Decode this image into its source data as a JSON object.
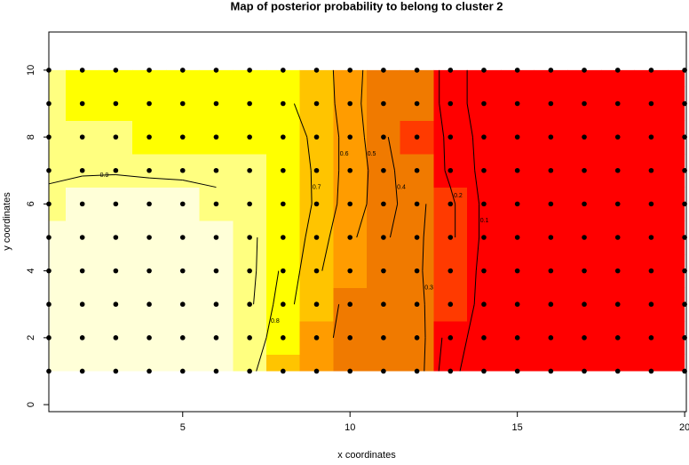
{
  "chart_data": {
    "type": "contour",
    "title": "Map of posterior probability to belong to cluster  2",
    "x_label": "x coordinates",
    "y_label": "y coordinates",
    "xlim": [
      1,
      20.05
    ],
    "ylim": [
      -0.21,
      11.14
    ],
    "xticks": [
      5,
      10,
      15,
      20
    ],
    "yticks": [
      0,
      2,
      4,
      6,
      8,
      10
    ],
    "grid_x": [
      1,
      2,
      3,
      4,
      5,
      6,
      7,
      8,
      9,
      10,
      11,
      12,
      13,
      14,
      15,
      16,
      17,
      18,
      19,
      20
    ],
    "grid_y": [
      1,
      2,
      3,
      4,
      5,
      6,
      7,
      8,
      9,
      10
    ],
    "z": [
      [
        1.0,
        1.0,
        1.0,
        1.0,
        0.98,
        0.95,
        0.85,
        0.6,
        0.5,
        0.45,
        0.4,
        0.35,
        0.12,
        0.05,
        0.03,
        0.03,
        0.02,
        0.02,
        0.02,
        0.02
      ],
      [
        1.0,
        1.0,
        1.0,
        1.0,
        0.98,
        0.95,
        0.9,
        0.7,
        0.55,
        0.45,
        0.4,
        0.35,
        0.15,
        0.05,
        0.03,
        0.03,
        0.02,
        0.02,
        0.02,
        0.02
      ],
      [
        0.98,
        1.0,
        1.0,
        1.0,
        0.97,
        0.95,
        0.92,
        0.75,
        0.6,
        0.45,
        0.4,
        0.33,
        0.2,
        0.06,
        0.03,
        0.03,
        0.02,
        0.02,
        0.02,
        0.02
      ],
      [
        0.97,
        0.99,
        1.0,
        1.0,
        0.97,
        0.95,
        0.93,
        0.78,
        0.62,
        0.5,
        0.4,
        0.32,
        0.2,
        0.07,
        0.03,
        0.03,
        0.02,
        0.02,
        0.02,
        0.02
      ],
      [
        0.96,
        0.98,
        1.0,
        1.0,
        0.98,
        0.95,
        0.93,
        0.8,
        0.65,
        0.52,
        0.42,
        0.32,
        0.22,
        0.08,
        0.03,
        0.03,
        0.02,
        0.02,
        0.02,
        0.02
      ],
      [
        0.93,
        0.95,
        0.97,
        0.97,
        0.95,
        0.93,
        0.9,
        0.82,
        0.68,
        0.55,
        0.45,
        0.33,
        0.22,
        0.08,
        0.03,
        0.03,
        0.02,
        0.02,
        0.02,
        0.02
      ],
      [
        0.88,
        0.89,
        0.89,
        0.88,
        0.88,
        0.87,
        0.86,
        0.8,
        0.68,
        0.56,
        0.45,
        0.3,
        0.18,
        0.07,
        0.03,
        0.03,
        0.02,
        0.02,
        0.02,
        0.02
      ],
      [
        0.87,
        0.86,
        0.85,
        0.82,
        0.8,
        0.8,
        0.78,
        0.75,
        0.68,
        0.56,
        0.42,
        0.28,
        0.18,
        0.06,
        0.03,
        0.03,
        0.02,
        0.02,
        0.02,
        0.02
      ],
      [
        0.86,
        0.84,
        0.82,
        0.8,
        0.79,
        0.78,
        0.76,
        0.72,
        0.66,
        0.55,
        0.4,
        0.3,
        0.15,
        0.05,
        0.03,
        0.03,
        0.02,
        0.02,
        0.02,
        0.02
      ],
      [
        0.86,
        0.84,
        0.82,
        0.8,
        0.78,
        0.76,
        0.74,
        0.7,
        0.65,
        0.55,
        0.42,
        0.3,
        0.15,
        0.05,
        0.03,
        0.03,
        0.02,
        0.02,
        0.02,
        0.02
      ]
    ],
    "breaks": [
      0,
      0.2,
      0.3,
      0.5,
      0.6,
      0.7,
      0.85,
      0.95,
      1
    ],
    "colors": [
      "#ff0000",
      "#ff3a00",
      "#f07a00",
      "#ff9c00",
      "#ffc400",
      "#ffff00",
      "#ffff80",
      "#ffffd8"
    ],
    "contour_levels": [
      0.1,
      0.2,
      0.3,
      0.4,
      0.5,
      0.6,
      0.7,
      0.8,
      0.9
    ],
    "point_color": "#000000"
  }
}
